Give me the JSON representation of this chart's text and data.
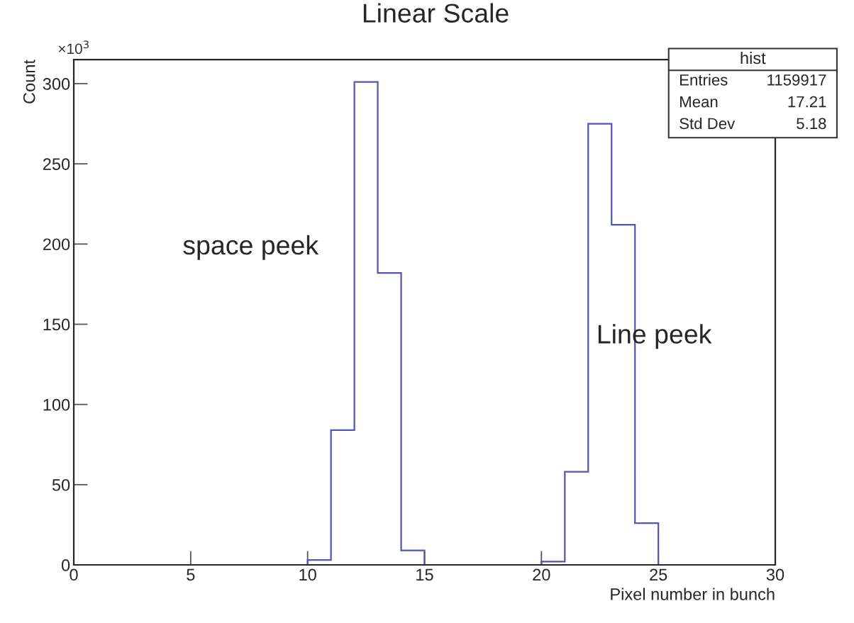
{
  "chart_data": {
    "type": "histogram",
    "title": "Linear Scale",
    "xlabel": "Pixel number in bunch",
    "ylabel": "Count",
    "bins": [
      1,
      2,
      3,
      4,
      5,
      6,
      7,
      8,
      9,
      10,
      11,
      12,
      13,
      14,
      15,
      16,
      17,
      18,
      19,
      20,
      21,
      22,
      23,
      24,
      25,
      26
    ],
    "values": [
      0,
      0,
      0,
      0,
      0,
      0,
      0,
      0,
      0,
      3,
      84,
      301,
      182,
      9,
      0,
      0,
      0,
      0,
      0,
      2,
      58,
      275,
      212,
      26,
      0
    ],
    "color": "#5555b0",
    "xlim": [
      0,
      30
    ],
    "xticks": [
      0,
      5,
      10,
      15,
      20,
      25,
      30
    ],
    "ylim": [
      0,
      315
    ],
    "yticks": [
      0,
      50,
      100,
      150,
      200,
      250,
      300
    ],
    "grid": false,
    "legend": false,
    "annotations": [
      "×10$^{3}$",
      "space peek",
      "Line peek",
      "hist",
      "Entries",
      "1159917",
      "Mean",
      "17.21",
      "Std Dev",
      "5.18"
    ]
  }
}
